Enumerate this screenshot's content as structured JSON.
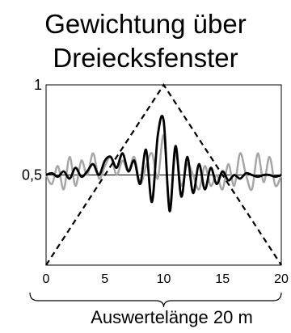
{
  "chart_data": {
    "type": "line",
    "title_line1": "Gewichtung über",
    "title_line2": "Dreiecksfenster",
    "xlabel": "Auswertelänge 20 m",
    "xlim": [
      0,
      20
    ],
    "ylim": [
      0,
      1
    ],
    "x_ticks": [
      "0",
      "5",
      "10",
      "15",
      "20"
    ],
    "y_ticks": [
      "0,5",
      "1"
    ],
    "reference_line_y": 0.5,
    "window": {
      "style": "dashed",
      "x": [
        0,
        10,
        20
      ],
      "y": [
        0,
        1,
        0
      ]
    },
    "series": [
      {
        "color": "#a6a6a6",
        "x": [
          0,
          0.5,
          1,
          1.5,
          2,
          2.5,
          3,
          3.5,
          4,
          4.5,
          5,
          5.5,
          6,
          6.5,
          7,
          7.5,
          8,
          8.5,
          9,
          9.5,
          10,
          10.5,
          11,
          11.5,
          12,
          12.5,
          13,
          13.5,
          14,
          14.5,
          15,
          15.5,
          16,
          16.5,
          17,
          17.5,
          18,
          18.5,
          19,
          19.5,
          20
        ],
        "y": [
          0.5,
          0.45,
          0.55,
          0.42,
          0.6,
          0.44,
          0.58,
          0.5,
          0.62,
          0.48,
          0.55,
          0.6,
          0.5,
          0.58,
          0.52,
          0.6,
          0.45,
          0.55,
          0.62,
          0.48,
          0.72,
          0.34,
          0.62,
          0.44,
          0.56,
          0.5,
          0.42,
          0.55,
          0.44,
          0.5,
          0.42,
          0.56,
          0.44,
          0.62,
          0.5,
          0.42,
          0.62,
          0.46,
          0.6,
          0.44,
          0.5
        ]
      },
      {
        "color": "#000000",
        "x": [
          0,
          0.5,
          1,
          1.5,
          2,
          2.5,
          3,
          3.5,
          4,
          4.5,
          5,
          5.5,
          6,
          6.5,
          7,
          7.5,
          8,
          8.5,
          9,
          9.5,
          10,
          10.5,
          11,
          11.5,
          12,
          12.5,
          13,
          13.5,
          14,
          14.5,
          15,
          15.5,
          16,
          16.5,
          17,
          17.5,
          18,
          18.5,
          19,
          19.5,
          20
        ],
        "y": [
          0.5,
          0.51,
          0.49,
          0.52,
          0.48,
          0.54,
          0.49,
          0.52,
          0.56,
          0.5,
          0.58,
          0.6,
          0.54,
          0.62,
          0.52,
          0.58,
          0.45,
          0.64,
          0.35,
          0.72,
          0.8,
          0.3,
          0.66,
          0.38,
          0.6,
          0.4,
          0.56,
          0.42,
          0.54,
          0.45,
          0.52,
          0.47,
          0.5,
          0.48,
          0.51,
          0.5,
          0.49,
          0.5,
          0.5,
          0.49,
          0.5
        ]
      }
    ]
  }
}
